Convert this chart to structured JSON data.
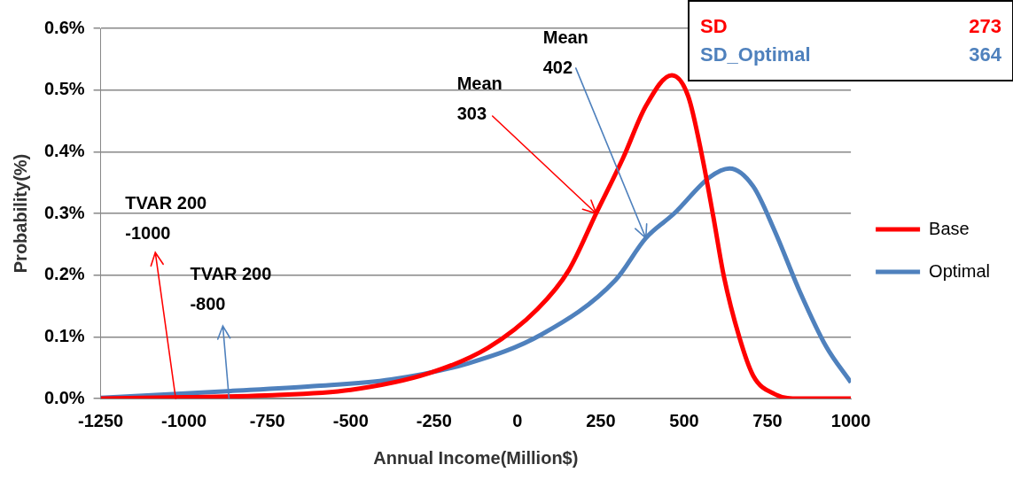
{
  "chart_data": {
    "type": "line",
    "xlabel": "Annual Income(Million$)",
    "ylabel": "Probability(%)",
    "xlim": [
      -1250,
      1000
    ],
    "xticks": [
      -1250,
      -1000,
      -750,
      -500,
      -250,
      0,
      250,
      500,
      750,
      1000
    ],
    "ylim": [
      0,
      0.6
    ],
    "yticks": [
      {
        "value": 0,
        "label": "0.0%"
      },
      {
        "value": 0.1,
        "label": "0.1%"
      },
      {
        "value": 0.2,
        "label": "0.2%"
      },
      {
        "value": 0.3,
        "label": "0.3%"
      },
      {
        "value": 0.4,
        "label": "0.4%"
      },
      {
        "value": 0.5,
        "label": "0.5%"
      },
      {
        "value": 0.6,
        "label": "0.6%"
      }
    ],
    "grid": "y",
    "legend": "right",
    "series": [
      {
        "name": "Base",
        "color": "#ff0000",
        "x": [
          -1250,
          -1000,
          -756,
          -500,
          -265,
          -89,
          60,
          154,
          236,
          317,
          385,
          463,
          512,
          554,
          587,
          619,
          665,
          707,
          772,
          847,
          1000
        ],
        "values": [
          0,
          0.002,
          0.005,
          0.014,
          0.041,
          0.082,
          0.145,
          0.208,
          0.3,
          0.39,
          0.474,
          0.524,
          0.49,
          0.392,
          0.296,
          0.198,
          0.1,
          0.037,
          0.007,
          0,
          0
        ]
      },
      {
        "name": "Optimal",
        "color": "#4f81bd",
        "x": [
          -1250,
          -866,
          -613,
          -379,
          -148,
          73,
          294,
          385,
          470,
          577,
          636,
          707,
          772,
          847,
          925,
          1000
        ],
        "values": [
          0.001,
          0.012,
          0.02,
          0.031,
          0.057,
          0.104,
          0.192,
          0.26,
          0.3,
          0.359,
          0.373,
          0.344,
          0.271,
          0.173,
          0.085,
          0.026
        ]
      }
    ],
    "annotations": [
      {
        "text": "Mean\n303",
        "x": 236,
        "y": 0.3
      },
      {
        "text": "Mean\n402",
        "x": 385,
        "y": 0.26
      },
      {
        "text": "TVAR 200\n-1000",
        "x": -1025,
        "y": 0
      },
      {
        "text": "TVAR 200\n-800",
        "x": -865,
        "y": 0
      },
      "SD 273",
      "SD_Optimal 364"
    ]
  }
}
